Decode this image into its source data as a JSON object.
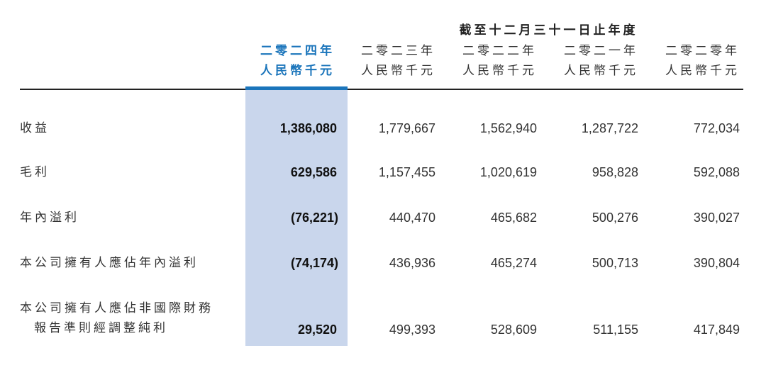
{
  "header": {
    "group_title": "截至十二月三十一日止年度"
  },
  "columns": [
    {
      "year": "二零二四年",
      "unit": "人民幣千元",
      "current": true
    },
    {
      "year": "二零二三年",
      "unit": "人民幣千元",
      "current": false
    },
    {
      "year": "二零二二年",
      "unit": "人民幣千元",
      "current": false
    },
    {
      "year": "二零二一年",
      "unit": "人民幣千元",
      "current": false
    },
    {
      "year": "二零二零年",
      "unit": "人民幣千元",
      "current": false
    }
  ],
  "rows": [
    {
      "label": "收益",
      "label_line2": "",
      "values": [
        "1,386,080",
        "1,779,667",
        "1,562,940",
        "1,287,722",
        "772,034"
      ]
    },
    {
      "label": "毛利",
      "label_line2": "",
      "values": [
        "629,586",
        "1,157,455",
        "1,020,619",
        "958,828",
        "592,088"
      ]
    },
    {
      "label": "年內溢利",
      "label_line2": "",
      "values": [
        "(76,221)",
        "440,470",
        "465,682",
        "500,276",
        "390,027"
      ]
    },
    {
      "label": "本公司擁有人應佔年內溢利",
      "label_line2": "",
      "values": [
        "(74,174)",
        "436,936",
        "465,274",
        "500,713",
        "390,804"
      ]
    },
    {
      "label": "本公司擁有人應佔非國際財務",
      "label_line2": "報告準則經調整純利",
      "values": [
        "29,520",
        "499,393",
        "528,609",
        "511,155",
        "417,849"
      ]
    }
  ],
  "colors": {
    "accent": "#1b75bb",
    "highlight": "#c9d6ec",
    "text": "#333333"
  }
}
